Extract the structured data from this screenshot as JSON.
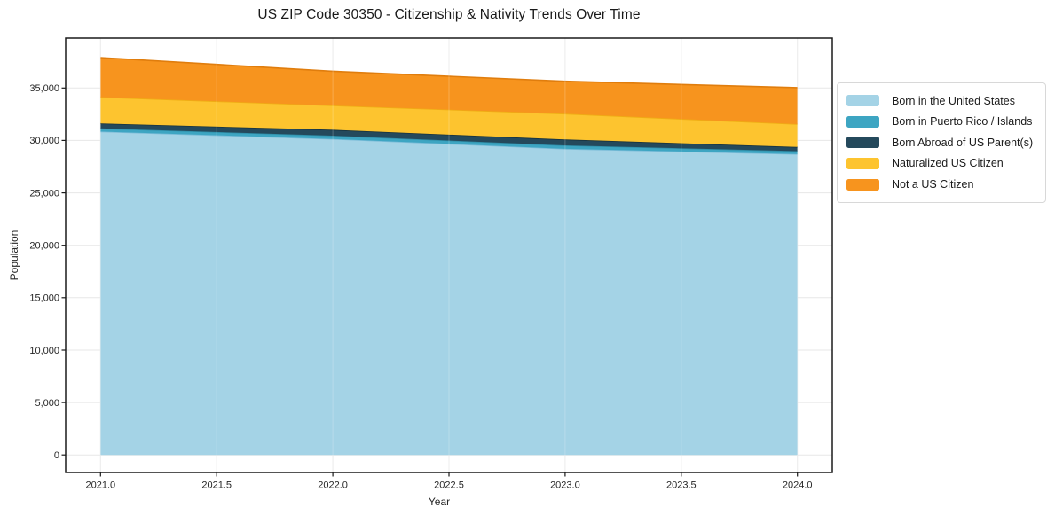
{
  "chart_data": {
    "type": "area",
    "stacked": true,
    "title": "US ZIP Code 30350 - Citizenship & Nativity Trends Over Time",
    "xlabel": "Year",
    "ylabel": "Population",
    "x": [
      2021,
      2022,
      2023,
      2024
    ],
    "series": [
      {
        "name": "Born in the United States",
        "color": "#A4D3E6",
        "edge": "#7BBCD8",
        "values": [
          30850,
          30150,
          29200,
          28700
        ]
      },
      {
        "name": "Born in Puerto Rico / Islands",
        "color": "#3DA5C2",
        "edge": "#2E8CA6",
        "values": [
          300,
          310,
          330,
          280
        ]
      },
      {
        "name": "Born Abroad of US Parent(s)",
        "color": "#24495C",
        "edge": "#18333F",
        "values": [
          480,
          560,
          570,
          400
        ]
      },
      {
        "name": "Naturalized US Citizen",
        "color": "#FDC42F",
        "edge": "#EFAD14",
        "values": [
          2510,
          2310,
          2450,
          2180
        ]
      },
      {
        "name": "Not a US Citizen",
        "color": "#F7941E",
        "edge": "#E07D0D",
        "values": [
          3760,
          3270,
          3090,
          3470
        ]
      }
    ],
    "stack_totals": [
      37900,
      36600,
      35640,
      35030
    ],
    "xlim": [
      2020.85,
      2024.15
    ],
    "ylim": [
      -1670,
      39760
    ],
    "x_tick_values": [
      2021.0,
      2021.5,
      2022.0,
      2022.5,
      2023.0,
      2023.5,
      2024.0
    ],
    "x_tick_labels": [
      "2021.0",
      "2021.5",
      "2022.0",
      "2022.5",
      "2023.0",
      "2023.5",
      "2024.0"
    ],
    "y_tick_values": [
      0,
      5000,
      10000,
      15000,
      20000,
      25000,
      30000,
      35000
    ],
    "y_tick_labels": [
      "0",
      "5,000",
      "10,000",
      "15,000",
      "20,000",
      "25,000",
      "30,000",
      "35,000"
    ],
    "grid": true,
    "grid_color": "#e7e7e7",
    "spine_color": "#1a1a1a",
    "legend_position": "right outside"
  }
}
